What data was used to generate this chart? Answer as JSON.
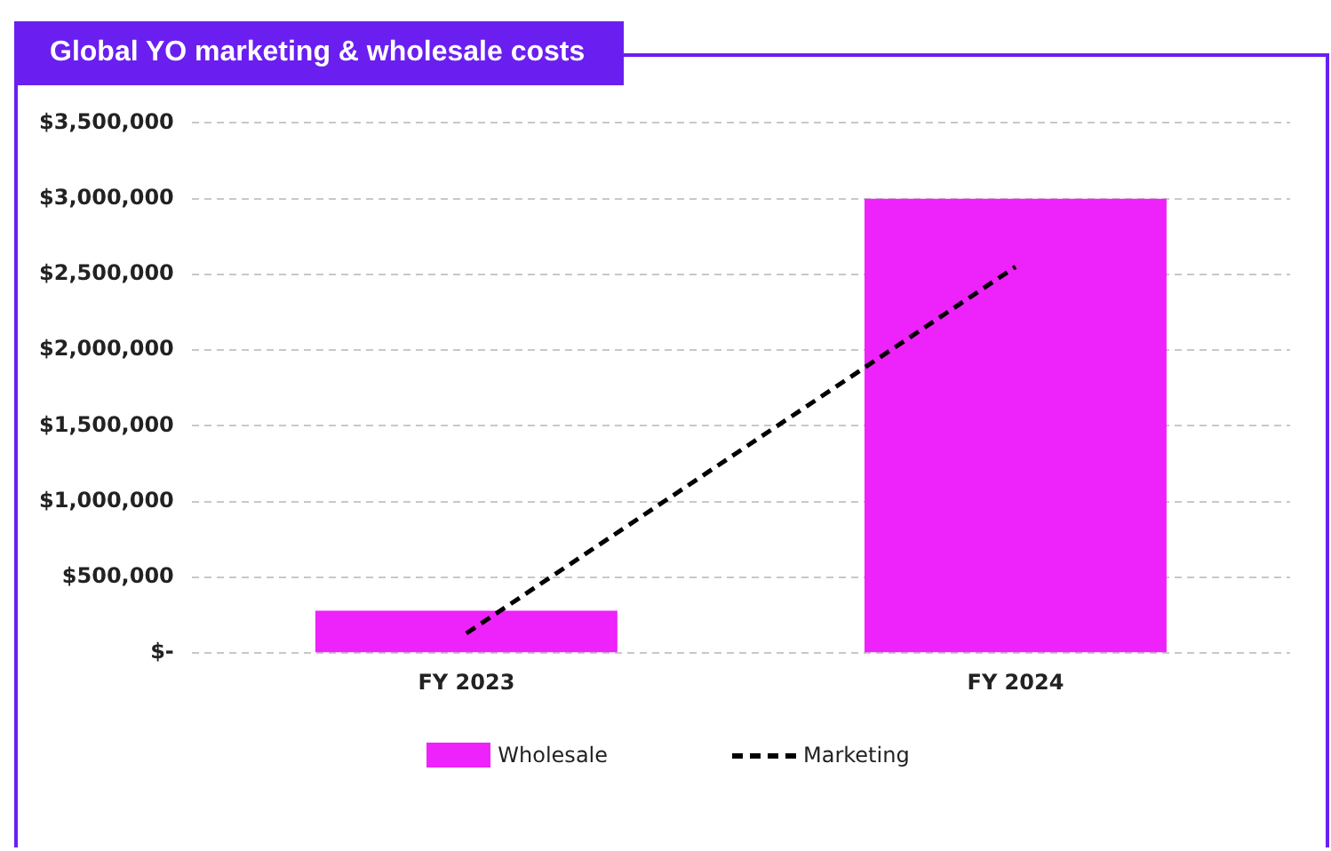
{
  "chart_data": {
    "type": "bar",
    "title": "Global YO marketing & wholesale costs",
    "categories": [
      "FY 2023",
      "FY 2024"
    ],
    "series": [
      {
        "name": "Wholesale",
        "color": "#ee22fa",
        "values": [
          280000,
          3000000
        ]
      },
      {
        "name": "Marketing",
        "type": "line",
        "color": "#000000",
        "values": [
          130000,
          2550000
        ],
        "line_style": "dashed",
        "marker": "none"
      }
    ],
    "ylim": [
      0,
      3500000
    ],
    "yticks": [
      {
        "value": 0,
        "label": "$-"
      },
      {
        "value": 500000,
        "label": "$500,000"
      },
      {
        "value": 1000000,
        "label": "$1,000,000"
      },
      {
        "value": 1500000,
        "label": "$1,500,000"
      },
      {
        "value": 2000000,
        "label": "$2,000,000"
      },
      {
        "value": 2500000,
        "label": "$2,500,000"
      },
      {
        "value": 3000000,
        "label": "$3,000,000"
      },
      {
        "value": 3500000,
        "label": "$3,500,000"
      }
    ],
    "grid": "y",
    "legend": "bottom"
  }
}
